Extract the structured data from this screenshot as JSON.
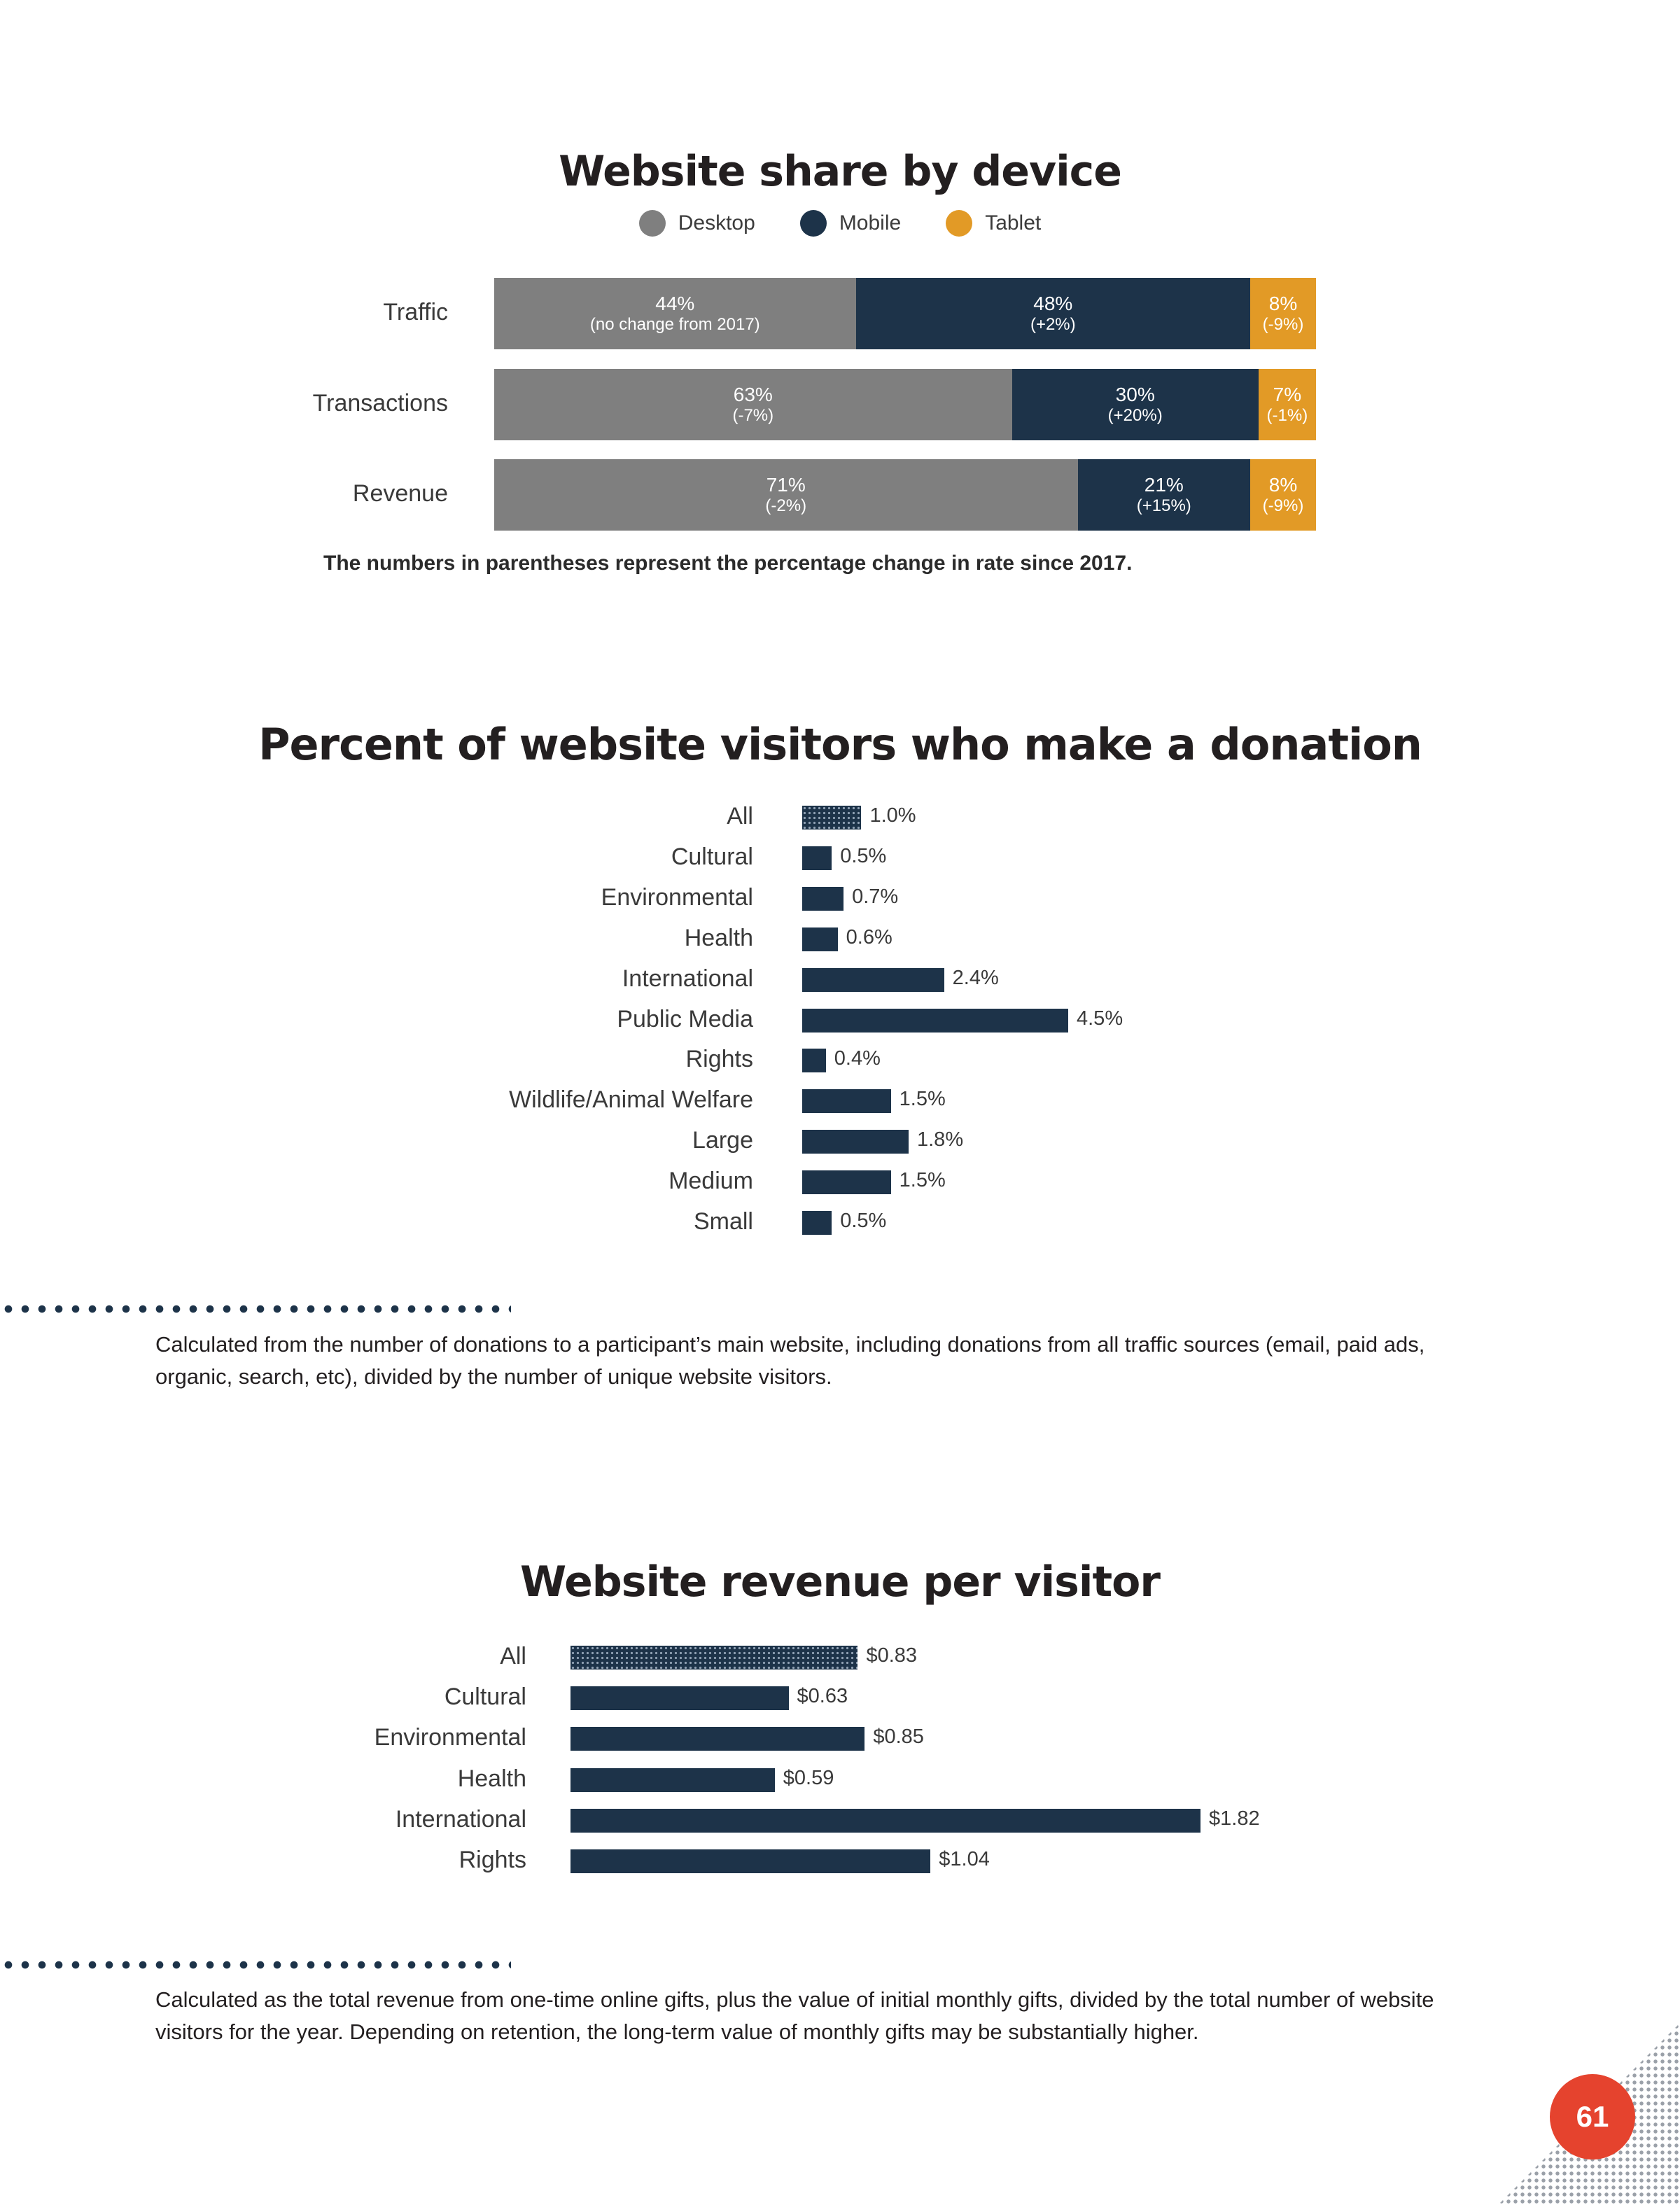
{
  "colors": {
    "desktop": "#7f7f7f",
    "mobile": "#1d3349",
    "tablet": "#e29a26",
    "bar": "#1d3349",
    "accent": "#e5432e"
  },
  "page_number": "61",
  "notes": {
    "donation": "Calculated from the number of donations to a participant’s main website, including donations from all traffic sources (email, paid ads, organic, search, etc), divided by the number of unique website visitors.",
    "revenue": "Calculated as the total revenue from one-time online gifts, plus the value of initial monthly gifts, divided by the total number of website visitors for the year. Depending on retention, the long-term value of monthly gifts may be substantially higher."
  },
  "chart_data": [
    {
      "type": "bar",
      "stacked": true,
      "orientation": "horizontal",
      "title": "Website share by device",
      "legend_position": "top",
      "categories": [
        "Traffic",
        "Transactions",
        "Revenue"
      ],
      "series": [
        {
          "name": "Desktop",
          "values": [
            44,
            63,
            71
          ],
          "labels": [
            "44%",
            "63%",
            "71%"
          ],
          "changes": [
            "(no change from 2017)",
            "(-7%)",
            "(-2%)"
          ]
        },
        {
          "name": "Mobile",
          "values": [
            48,
            30,
            21
          ],
          "labels": [
            "48%",
            "30%",
            "21%"
          ],
          "changes": [
            "(+2%)",
            "(+20%)",
            "(+15%)"
          ]
        },
        {
          "name": "Tablet",
          "values": [
            8,
            7,
            8
          ],
          "labels": [
            "8%",
            "7%",
            "8%"
          ],
          "changes": [
            "(-9%)",
            "(-1%)",
            "(-9%)"
          ]
        }
      ],
      "footnote": "The numbers in parentheses represent the percentage change in rate since 2017."
    },
    {
      "type": "bar",
      "orientation": "horizontal",
      "title": "Percent of website visitors who make a donation",
      "categories": [
        "All",
        "Cultural",
        "Environmental",
        "Health",
        "International",
        "Public Media",
        "Rights",
        "Wildlife/Animal Welfare",
        "Large",
        "Medium",
        "Small"
      ],
      "values": [
        1.0,
        0.5,
        0.7,
        0.6,
        2.4,
        4.5,
        0.4,
        1.5,
        1.8,
        1.5,
        0.5
      ],
      "labels": [
        "1.0%",
        "0.5%",
        "0.7%",
        "0.6%",
        "2.4%",
        "4.5%",
        "0.4%",
        "1.5%",
        "1.8%",
        "1.5%",
        "0.5%"
      ],
      "xlim": [
        0,
        4.5
      ]
    },
    {
      "type": "bar",
      "orientation": "horizontal",
      "title": "Website revenue per visitor",
      "categories": [
        "All",
        "Cultural",
        "Environmental",
        "Health",
        "International",
        "Rights"
      ],
      "values": [
        0.83,
        0.63,
        0.85,
        0.59,
        1.82,
        1.04
      ],
      "labels": [
        "$0.83",
        "$0.63",
        "$0.85",
        "$0.59",
        "$1.82",
        "$1.04"
      ],
      "xlim": [
        0,
        1.82
      ]
    }
  ]
}
